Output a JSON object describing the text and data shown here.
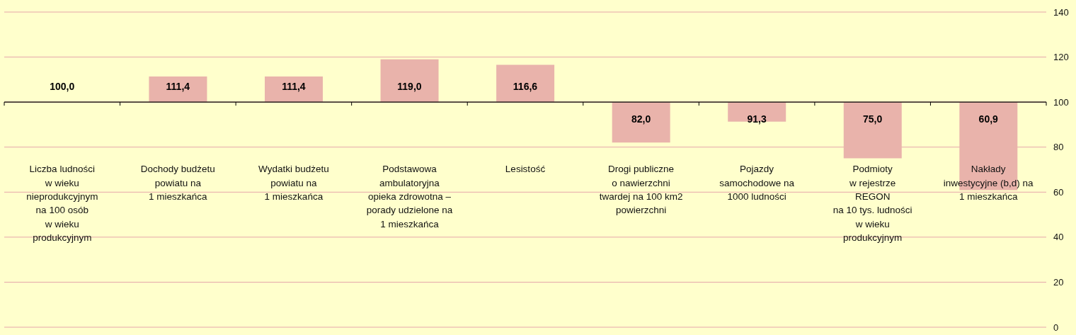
{
  "chart_data": {
    "type": "bar",
    "categories": [
      "Liczba ludności\nw wieku\nnieprodukcyjnym\nna 100 osób\nw wieku\nprodukcyjnym",
      "Dochody budżetu\npowiatu na\n1 mieszkańca",
      "Wydatki budżetu\npowiatu na\n1 mieszkańca",
      "Podstawowa\nambulatoryjna\nopieka zdrowotna –\nporady udzielone na\n1 mieszkańca",
      "Lesistość",
      "Drogi publiczne\no nawierzchni\ntwardej na 100 km2\npowierzchni",
      "Pojazdy\nsamochodowe na\n1000 ludności",
      "Podmioty\nw rejestrze\nREGON\nna 10 tys. ludności\nw wieku\nprodukcyjnym",
      "Nakłady\ninwestycyjne (b,d) na\n1 mieszkańca"
    ],
    "base": [
      null,
      100,
      100,
      100,
      100,
      100,
      100,
      100,
      100
    ],
    "values": [
      null,
      11.4,
      11.4,
      19.0,
      16.6,
      -18.0,
      -8.7,
      -25.0,
      -39.1
    ],
    "value_labels": [
      "100,0",
      "111,4",
      "111,4",
      "119,0",
      "116,6",
      "82,0",
      "91,3",
      "75,0",
      "60,9"
    ],
    "color": "#e9b3ab",
    "ylim": [
      0,
      140
    ],
    "yticks": [
      0,
      20,
      40,
      60,
      80,
      100,
      120,
      140
    ],
    "ref_lines": [
      {
        "axis": "y",
        "value": 100,
        "color": "#000000"
      }
    ],
    "grid": "y"
  }
}
